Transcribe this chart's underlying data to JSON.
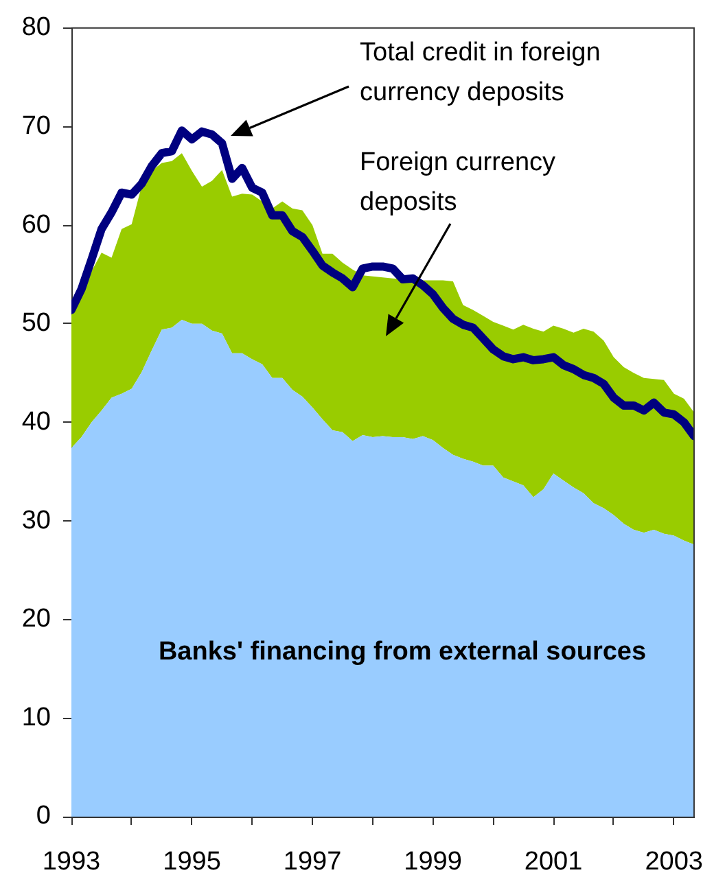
{
  "chart_data": {
    "type": "area",
    "stacked": true,
    "legend": false,
    "marker": "none",
    "x": [
      "1993-01",
      "1993-03",
      "1993-05",
      "1993-07",
      "1993-09",
      "1993-11",
      "1994-01",
      "1994-03",
      "1994-05",
      "1994-07",
      "1994-09",
      "1994-11",
      "1995-01",
      "1995-03",
      "1995-05",
      "1995-07",
      "1995-09",
      "1995-11",
      "1996-01",
      "1996-03",
      "1996-05",
      "1996-07",
      "1996-09",
      "1996-11",
      "1997-01",
      "1997-03",
      "1997-05",
      "1997-07",
      "1997-09",
      "1997-11",
      "1998-01",
      "1998-03",
      "1998-05",
      "1998-07",
      "1998-09",
      "1998-11",
      "1999-01",
      "1999-03",
      "1999-05",
      "1999-07",
      "1999-09",
      "1999-11",
      "2000-01",
      "2000-03",
      "2000-05",
      "2000-07",
      "2000-09",
      "2000-11",
      "2001-01",
      "2001-03",
      "2001-05",
      "2001-07",
      "2001-09",
      "2001-11",
      "2002-01",
      "2002-03",
      "2002-05",
      "2002-07",
      "2002-09",
      "2002-11",
      "2003-01",
      "2003-03",
      "2003-05"
    ],
    "series": [
      {
        "name": "Banks' financing from external sources",
        "color": "#99ccff",
        "values": [
          37.4,
          38.5,
          40.0,
          41.2,
          42.5,
          42.9,
          43.4,
          45.1,
          47.3,
          49.4,
          49.6,
          50.4,
          50.0,
          50.0,
          49.3,
          49.0,
          47.0,
          47.0,
          46.4,
          45.9,
          44.5,
          44.5,
          43.3,
          42.6,
          41.5,
          40.3,
          39.2,
          39.0,
          38.1,
          38.7,
          38.5,
          38.6,
          38.5,
          38.5,
          38.3,
          38.6,
          38.2,
          37.4,
          36.7,
          36.3,
          36.0,
          35.6,
          35.6,
          34.4,
          34.0,
          33.6,
          32.4,
          33.2,
          34.8,
          34.1,
          33.4,
          32.8,
          31.8,
          31.3,
          30.6,
          29.7,
          29.1,
          28.8,
          29.1,
          28.7,
          28.5,
          28.0,
          27.6
        ]
      },
      {
        "name": "Foreign currency deposits",
        "color": "#99cc00",
        "values": [
          13.5,
          14.2,
          15.3,
          16.0,
          14.2,
          16.7,
          16.7,
          18.9,
          18.2,
          16.9,
          16.9,
          16.9,
          15.5,
          13.9,
          15.2,
          16.6,
          15.9,
          16.2,
          16.7,
          16.5,
          17.2,
          17.9,
          18.4,
          18.9,
          18.5,
          16.8,
          17.9,
          17.2,
          17.4,
          16.2,
          16.3,
          16.1,
          16.1,
          16.0,
          16.1,
          15.8,
          16.2,
          17.0,
          17.6,
          15.6,
          15.4,
          15.2,
          14.6,
          15.4,
          15.4,
          16.3,
          17.1,
          16.0,
          15.0,
          15.4,
          15.7,
          16.7,
          17.4,
          17.0,
          16.0,
          15.9,
          15.9,
          15.7,
          15.3,
          15.6,
          14.4,
          14.4,
          13.4
        ]
      },
      {
        "name": "Total credit in foreign currency deposits",
        "type": "line",
        "color": "#000080",
        "values": [
          51.4,
          53.5,
          56.5,
          59.6,
          61.3,
          63.3,
          63.1,
          64.2,
          66.0,
          67.3,
          67.5,
          69.6,
          68.7,
          69.5,
          69.2,
          68.3,
          64.7,
          65.8,
          63.8,
          63.3,
          61.0,
          61.0,
          59.4,
          58.8,
          57.4,
          55.9,
          55.2,
          54.6,
          53.7,
          55.6,
          55.8,
          55.8,
          55.6,
          54.5,
          54.6,
          53.9,
          53.0,
          51.6,
          50.5,
          49.9,
          49.6,
          48.5,
          47.4,
          46.7,
          46.4,
          46.6,
          46.3,
          46.4,
          46.6,
          45.8,
          45.4,
          44.8,
          44.5,
          43.9,
          42.5,
          41.7,
          41.7,
          41.2,
          42.0,
          41.0,
          40.8,
          40.0,
          38.6
        ]
      }
    ],
    "xlim": [
      "1993-01",
      "2003-05"
    ],
    "xticks": [
      "1993",
      {
        "value": "1994",
        "label": null
      },
      "1995",
      {
        "value": "1996",
        "label": null
      },
      "1997",
      {
        "value": "1998",
        "label": null
      },
      "1999",
      {
        "value": "2000",
        "label": null
      },
      "2001",
      {
        "value": "2002",
        "label": null
      },
      "2003"
    ],
    "ylim": [
      0,
      80
    ],
    "yticks": [
      0,
      10,
      20,
      30,
      40,
      50,
      60,
      70,
      80
    ]
  }
}
